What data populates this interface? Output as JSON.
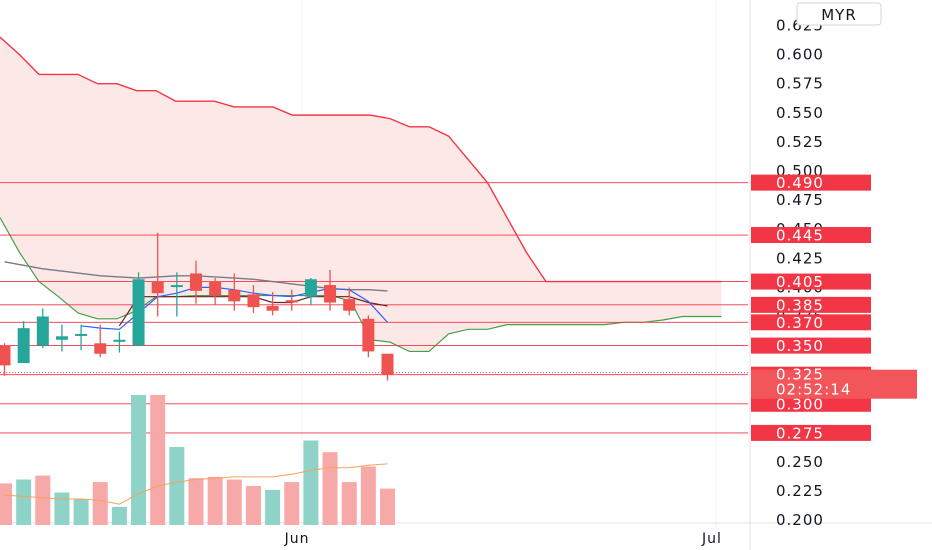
{
  "chart_data": {
    "type": "candlestick",
    "currency": "MYR",
    "colors": {
      "up": "#26a69a",
      "down": "#ef5350",
      "level_line": "#f23645",
      "cloud_fill": "#fde8e8",
      "cloud_edge": "#f23645",
      "green_line": "#43a047",
      "blue_line": "#2962ff",
      "gray_line": "#787b86",
      "brown_line": "#6d1f1f",
      "volume_up": "#8fd3c8",
      "volume_down": "#f7a9a8",
      "volume_ma": "#f5a25d"
    },
    "y_axis": {
      "ticks": [
        "0.200",
        "0.225",
        "0.250",
        "0.275",
        "0.300",
        "0.325",
        "0.350",
        "0.375",
        "0.400",
        "0.425",
        "0.450",
        "0.475",
        "0.500",
        "0.525",
        "0.550",
        "0.575",
        "0.600",
        "0.625"
      ],
      "range": [
        0.19,
        0.635
      ]
    },
    "x_axis": {
      "ticks": [
        "Jun",
        "Jul"
      ]
    },
    "price_levels": [
      {
        "value": 0.49,
        "label": "0.490"
      },
      {
        "value": 0.445,
        "label": "0.445"
      },
      {
        "value": 0.405,
        "label": "0.405"
      },
      {
        "value": 0.385,
        "label": "0.385"
      },
      {
        "value": 0.37,
        "label": "0.370"
      },
      {
        "value": 0.35,
        "label": "0.350"
      },
      {
        "value": 0.325,
        "label": "0.325"
      },
      {
        "value": 0.3,
        "label": "0.300"
      },
      {
        "value": 0.275,
        "label": "0.275"
      }
    ],
    "last_price": {
      "value": 0.325,
      "label": "0.325",
      "countdown": "02:52:14"
    },
    "candles": [
      {
        "open": 0.35,
        "high": 0.352,
        "low": 0.324,
        "close": 0.333
      },
      {
        "open": 0.335,
        "high": 0.371,
        "low": 0.335,
        "close": 0.365
      },
      {
        "open": 0.35,
        "high": 0.382,
        "low": 0.348,
        "close": 0.375
      },
      {
        "open": 0.355,
        "high": 0.368,
        "low": 0.345,
        "close": 0.358
      },
      {
        "open": 0.36,
        "high": 0.368,
        "low": 0.346,
        "close": 0.36
      },
      {
        "open": 0.352,
        "high": 0.368,
        "low": 0.34,
        "close": 0.343
      },
      {
        "open": 0.355,
        "high": 0.362,
        "low": 0.344,
        "close": 0.355
      },
      {
        "open": 0.35,
        "high": 0.413,
        "low": 0.35,
        "close": 0.407
      },
      {
        "open": 0.405,
        "high": 0.447,
        "low": 0.375,
        "close": 0.395
      },
      {
        "open": 0.402,
        "high": 0.413,
        "low": 0.375,
        "close": 0.402
      },
      {
        "open": 0.412,
        "high": 0.423,
        "low": 0.386,
        "close": 0.397
      },
      {
        "open": 0.405,
        "high": 0.408,
        "low": 0.385,
        "close": 0.393
      },
      {
        "open": 0.398,
        "high": 0.412,
        "low": 0.38,
        "close": 0.388
      },
      {
        "open": 0.394,
        "high": 0.402,
        "low": 0.378,
        "close": 0.383
      },
      {
        "open": 0.384,
        "high": 0.396,
        "low": 0.376,
        "close": 0.38
      },
      {
        "open": 0.389,
        "high": 0.398,
        "low": 0.38,
        "close": 0.387
      },
      {
        "open": 0.392,
        "high": 0.408,
        "low": 0.385,
        "close": 0.407
      },
      {
        "open": 0.402,
        "high": 0.415,
        "low": 0.38,
        "close": 0.387
      },
      {
        "open": 0.39,
        "high": 0.4,
        "low": 0.376,
        "close": 0.38
      },
      {
        "open": 0.373,
        "high": 0.376,
        "low": 0.34,
        "close": 0.345
      },
      {
        "open": 0.343,
        "high": 0.343,
        "low": 0.32,
        "close": 0.325
      }
    ],
    "volume": [
      {
        "value": 0.32,
        "dir": "down"
      },
      {
        "value": 0.35,
        "dir": "up"
      },
      {
        "value": 0.38,
        "dir": "down"
      },
      {
        "value": 0.25,
        "dir": "up"
      },
      {
        "value": 0.2,
        "dir": "up"
      },
      {
        "value": 0.33,
        "dir": "down"
      },
      {
        "value": 0.14,
        "dir": "up"
      },
      {
        "value": 1.0,
        "dir": "up"
      },
      {
        "value": 1.0,
        "dir": "down"
      },
      {
        "value": 0.6,
        "dir": "up"
      },
      {
        "value": 0.36,
        "dir": "down"
      },
      {
        "value": 0.37,
        "dir": "down"
      },
      {
        "value": 0.35,
        "dir": "down"
      },
      {
        "value": 0.3,
        "dir": "down"
      },
      {
        "value": 0.27,
        "dir": "up"
      },
      {
        "value": 0.33,
        "dir": "down"
      },
      {
        "value": 0.65,
        "dir": "up"
      },
      {
        "value": 0.56,
        "dir": "down"
      },
      {
        "value": 0.33,
        "dir": "down"
      },
      {
        "value": 0.45,
        "dir": "down"
      },
      {
        "value": 0.28,
        "dir": "down"
      }
    ],
    "volume_ma": [
      0.23,
      0.22,
      0.21,
      0.2,
      0.2,
      0.19,
      0.16,
      0.24,
      0.3,
      0.33,
      0.35,
      0.36,
      0.37,
      0.37,
      0.37,
      0.39,
      0.42,
      0.44,
      0.44,
      0.46,
      0.47
    ],
    "cloud_top": [
      0.615,
      0.6,
      0.583,
      0.583,
      0.583,
      0.575,
      0.575,
      0.569,
      0.569,
      0.56,
      0.56,
      0.56,
      0.555,
      0.555,
      0.555,
      0.548,
      0.548,
      0.548,
      0.548,
      0.548,
      0.545,
      0.538,
      0.538,
      0.53,
      0.51,
      0.49,
      0.46,
      0.43,
      0.405,
      0.405,
      0.405,
      0.405,
      0.405,
      0.405,
      0.405,
      0.405,
      0.405,
      0.405
    ],
    "green_line": [
      0.46,
      0.43,
      0.405,
      0.392,
      0.378,
      0.373,
      0.373,
      0.38,
      0.392,
      0.392,
      0.393,
      0.393,
      0.393,
      0.393,
      0.393,
      0.393,
      0.393,
      0.393,
      0.388,
      0.355,
      0.353,
      0.345,
      0.345,
      0.36,
      0.364,
      0.364,
      0.368,
      0.368,
      0.368,
      0.368,
      0.368,
      0.368,
      0.37,
      0.37,
      0.372,
      0.375,
      0.375,
      0.375
    ],
    "gray_line": [
      0.422,
      0.419,
      0.416,
      0.414,
      0.412,
      0.41,
      0.409,
      0.408,
      0.409,
      0.41,
      0.41,
      0.409,
      0.408,
      0.407,
      0.405,
      0.403,
      0.401,
      0.399,
      0.398,
      0.398,
      0.397
    ],
    "brown_line": [
      null,
      null,
      null,
      null,
      null,
      null,
      0.367,
      0.392,
      0.392,
      0.392,
      0.392,
      0.392,
      0.392,
      0.392,
      0.387,
      0.387,
      0.392,
      0.392,
      0.392,
      0.387,
      0.384
    ],
    "blue_line": [
      null,
      null,
      null,
      null,
      0.367,
      0.365,
      0.364,
      0.378,
      0.392,
      0.395,
      0.4,
      0.4,
      0.398,
      0.395,
      0.393,
      0.392,
      0.396,
      0.399,
      0.398,
      0.388,
      0.37
    ]
  }
}
